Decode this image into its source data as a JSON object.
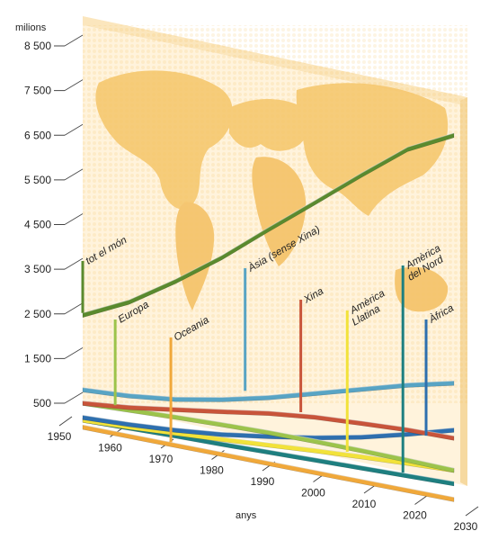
{
  "chart_data": {
    "type": "line",
    "ylabel": "milions",
    "xlabel": "anys",
    "yticks": [
      "500",
      "1 500",
      "2 500",
      "3 500",
      "4 500",
      "5 500",
      "6 500",
      "7 500",
      "8 500"
    ],
    "ytick_values": [
      500,
      1500,
      2500,
      3500,
      4500,
      5500,
      6500,
      7500,
      8500
    ],
    "xticks": [
      "1950",
      "1960",
      "1970",
      "1980",
      "1990",
      "2000",
      "2010",
      "2020",
      "2030"
    ],
    "ylim": [
      0,
      9000
    ],
    "x": [
      1950,
      1960,
      1970,
      1980,
      1990,
      2000,
      2010,
      2020,
      2030
    ],
    "series": [
      {
        "name": "tot el món",
        "color": "#5a8a2e",
        "values": [
          2520,
          3020,
          3690,
          4430,
          5260,
          6070,
          6890,
          7680,
          8200
        ]
      },
      {
        "name": "Àsia (sense Xina)",
        "color": "#58a4c4",
        "values": [
          850,
          920,
          1050,
          1250,
          1500,
          1800,
          2100,
          2400,
          2650
        ]
      },
      {
        "name": "Xina",
        "color": "#c8543a",
        "values": [
          550,
          660,
          820,
          980,
          1150,
          1270,
          1340,
          1400,
          1420
        ]
      },
      {
        "name": "Europa",
        "color": "#9cc34b",
        "values": [
          550,
          600,
          650,
          690,
          720,
          730,
          730,
          720,
          700
        ]
      },
      {
        "name": "Àfrica",
        "color": "#2e6fae",
        "values": [
          230,
          280,
          360,
          470,
          630,
          810,
          1030,
          1300,
          1600
        ]
      },
      {
        "name": "Amèrica Llatina",
        "color": "#f2e23a",
        "values": [
          170,
          220,
          290,
          360,
          440,
          520,
          590,
          650,
          700
        ]
      },
      {
        "name": "Amèrica del Nord",
        "color": "#1e7f80",
        "values": [
          170,
          200,
          230,
          250,
          280,
          310,
          340,
          370,
          400
        ]
      },
      {
        "name": "Oceania",
        "color": "#f0a83a",
        "values": [
          13,
          16,
          19,
          23,
          27,
          31,
          36,
          41,
          46
        ]
      }
    ]
  }
}
